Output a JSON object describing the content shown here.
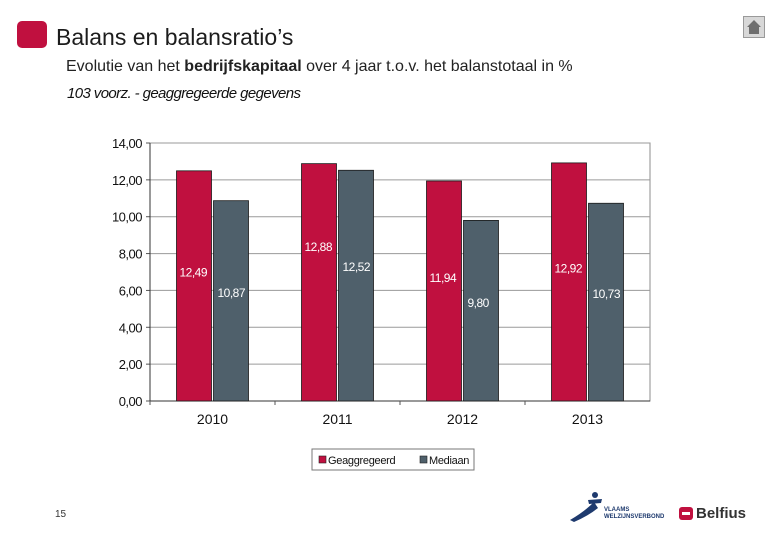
{
  "header": {
    "title": "Balans en balansratio’s",
    "subtitle_pre": "Evolutie van het ",
    "subtitle_bold": "bedrijfskapitaal",
    "subtitle_post": " over 4 jaar t.o.v. het balanstotaal in %",
    "chart_caption": "103  voorz. - geaggregeerde gegevens"
  },
  "footer": {
    "page_number": "15",
    "vvsg_line1": "VLAAMS",
    "vvsg_line2": "WELZIJNSVERBOND",
    "belfius_label": "Belfius"
  },
  "colors": {
    "accent": "#c0103f",
    "series1": "#c0103f",
    "series2": "#4f606b"
  },
  "chart_data": {
    "type": "bar",
    "title": "",
    "xlabel": "",
    "ylabel": "",
    "categories": [
      "2010",
      "2011",
      "2012",
      "2013"
    ],
    "series": [
      {
        "name": "Geaggregeerd",
        "values": [
          12.49,
          12.88,
          11.94,
          12.92
        ],
        "labels": [
          "12,49",
          "12,88",
          "11,94",
          "12,92"
        ],
        "color": "#c0103f"
      },
      {
        "name": "Mediaan",
        "values": [
          10.87,
          12.52,
          9.8,
          10.73
        ],
        "labels": [
          "10,87",
          "12,52",
          "9,80",
          "10,73"
        ],
        "color": "#4f606b"
      }
    ],
    "ylim": [
      0,
      14
    ],
    "yticks": [
      0,
      2,
      4,
      6,
      8,
      10,
      12,
      14
    ],
    "ytick_labels": [
      "0,00",
      "2,00",
      "4,00",
      "6,00",
      "8,00",
      "10,00",
      "12,00",
      "14,00"
    ],
    "grid": true,
    "legend": "bottom-center"
  }
}
